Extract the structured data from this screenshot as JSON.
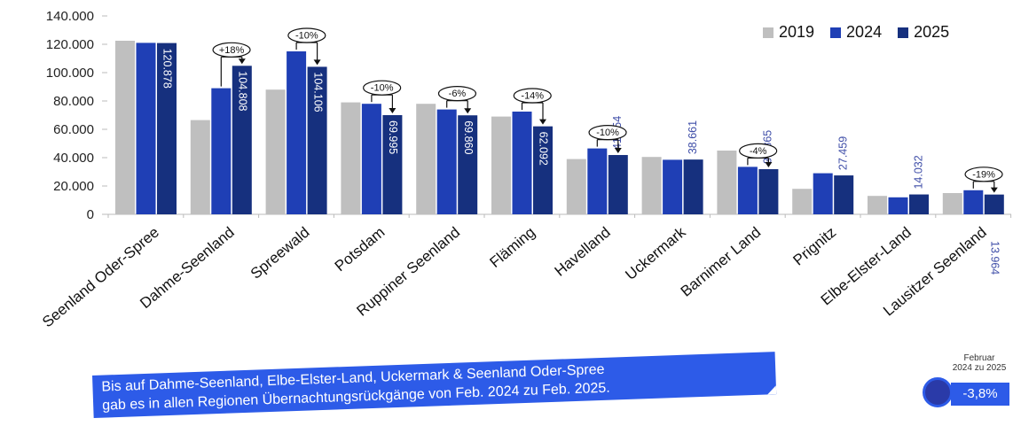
{
  "chart_data": {
    "type": "bar",
    "categories": [
      "Seenland Oder-Spree",
      "Dahme-Seenland",
      "Spreewald",
      "Potsdam",
      "Ruppiner Seenland",
      "Fläming",
      "Havelland",
      "Uckermark",
      "Barnimer Land",
      "Prignitz",
      "Elbe-Elster-Land",
      "Lausitzer Seenland"
    ],
    "series": [
      {
        "name": "2019",
        "color": "#bfbfbf",
        "values": [
          122500,
          66500,
          88000,
          79000,
          78000,
          69000,
          39000,
          40500,
          45000,
          18000,
          13000,
          15000
        ]
      },
      {
        "name": "2024",
        "color": "#1f3fb5",
        "values": [
          121000,
          89000,
          115000,
          78000,
          74000,
          72500,
          46500,
          38500,
          33500,
          29000,
          12000,
          17000
        ]
      },
      {
        "name": "2025",
        "color": "#16307e",
        "values": [
          120878,
          104808,
          104106,
          69995,
          69860,
          62092,
          41854,
          38661,
          31865,
          27459,
          14032,
          13964
        ]
      }
    ],
    "data_labels_2025": [
      "120.878",
      "104.808",
      "104.106",
      "69.995",
      "69.860",
      "62.092",
      "41.854",
      "38.661",
      "31.865",
      "27.459",
      "14.032",
      "13.964"
    ],
    "change_annotations": [
      {
        "category_index": 1,
        "label": "+18%"
      },
      {
        "category_index": 2,
        "label": "-10%"
      },
      {
        "category_index": 3,
        "label": "-10%"
      },
      {
        "category_index": 4,
        "label": "-6%"
      },
      {
        "category_index": 5,
        "label": "-14%"
      },
      {
        "category_index": 6,
        "label": "-10%"
      },
      {
        "category_index": 8,
        "label": "-4%"
      },
      {
        "category_index": 11,
        "label": "-19%"
      }
    ],
    "y_ticks": [
      "0",
      "20.000",
      "40.000",
      "60.000",
      "80.000",
      "100.000",
      "120.000",
      "140.000"
    ],
    "ylim": [
      0,
      140000
    ],
    "legend_position": "top-right",
    "grid": false
  },
  "banner": {
    "line1": "Bis auf Dahme-Seenland, Elbe-Elster-Land, Uckermark & Seenland Oder-Spree",
    "line2": "gab es in allen Regionen Übernachtungsrückgänge von Feb. 2024 zu Feb. 2025."
  },
  "badge": {
    "caption_line1": "Februar",
    "caption_line2": "2024 zu 2025",
    "value": "-3,8%",
    "accent": "#2d5be8"
  }
}
